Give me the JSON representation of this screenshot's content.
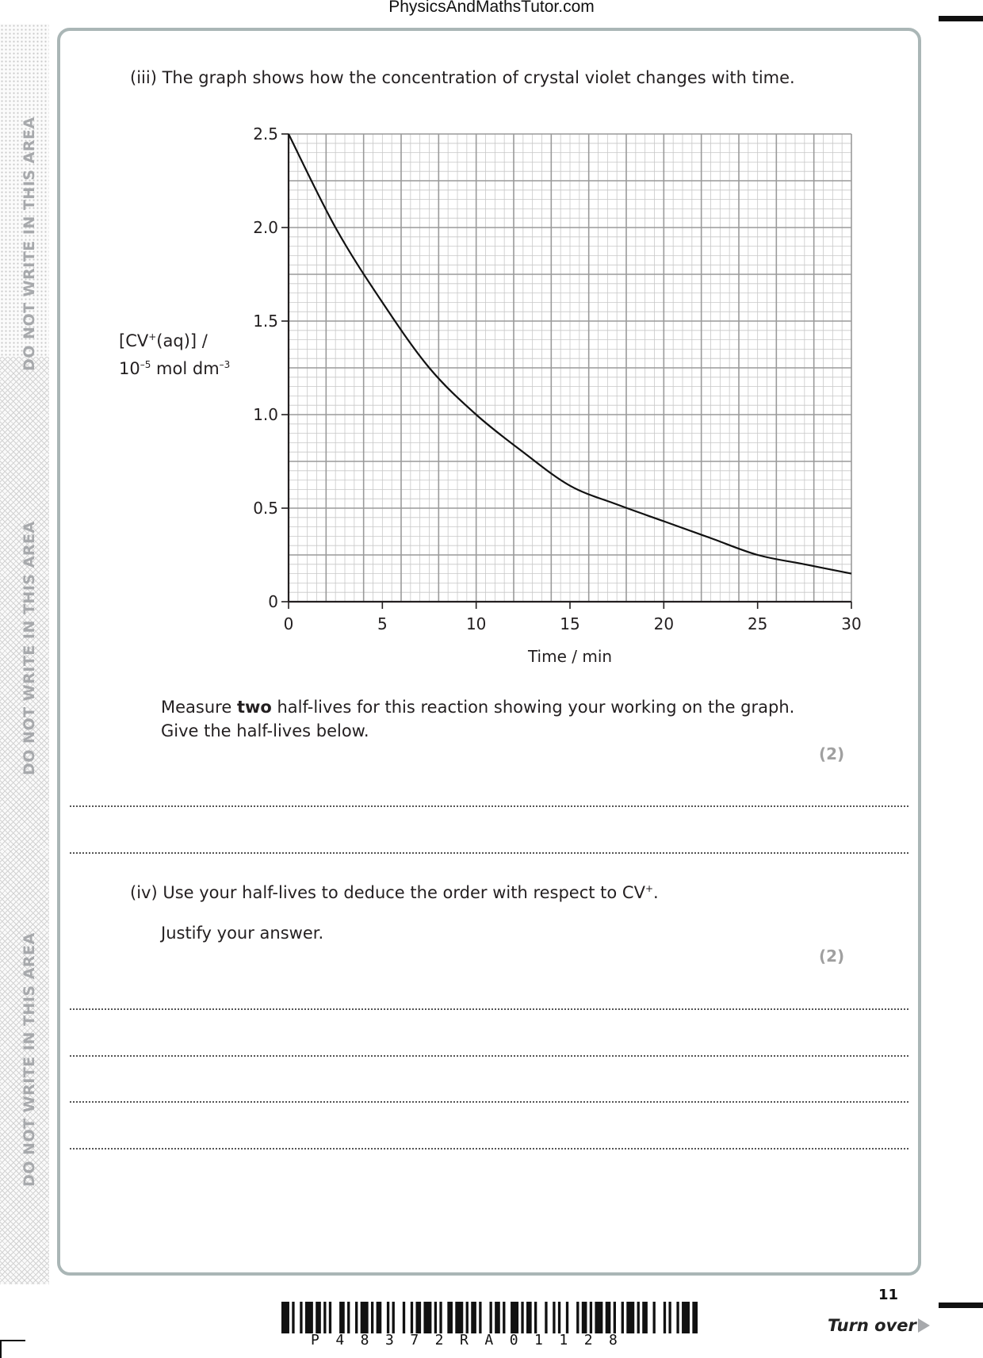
{
  "header": {
    "site": "PhysicsAndMathsTutor.com"
  },
  "margin": {
    "warning": "DO NOT WRITE IN THIS AREA"
  },
  "part_iii": {
    "label": "(iii)",
    "text": "The graph shows how the concentration of crystal violet changes with time.",
    "instruction_pre": "Measure ",
    "instruction_bold": "two",
    "instruction_post": " half-lives for this reaction showing your working on the graph.",
    "instruction_line2": "Give the half-lives below.",
    "marks": "(2)"
  },
  "part_iv": {
    "label": "(iv)",
    "text_pre": "Use your half-lives to deduce the order with respect to CV",
    "text_sup": "+",
    "text_post": ".",
    "line2": "Justify your answer.",
    "marks": "(2)"
  },
  "chart_data": {
    "type": "line",
    "title": "",
    "xlabel": "Time / min",
    "ylabel_line1": "[CV",
    "ylabel_sup1": "+",
    "ylabel_mid": "(aq)] /",
    "ylabel_line2_pre": "10",
    "ylabel_sup2": "–5",
    "ylabel_line2_post": " mol dm",
    "ylabel_sup3": "–3",
    "xlim": [
      0,
      30
    ],
    "ylim": [
      0,
      2.5
    ],
    "x_ticks": [
      "0",
      "5",
      "10",
      "15",
      "20",
      "25",
      "30"
    ],
    "y_ticks": [
      "0",
      "0.5",
      "1.0",
      "1.5",
      "2.0",
      "2.5"
    ],
    "grid": true,
    "series": [
      {
        "x": [
          0,
          2.5,
          5,
          7.5,
          10,
          12.5,
          15,
          17.5,
          20,
          22.5,
          25,
          27.5,
          30
        ],
        "y": [
          2.5,
          2.0,
          1.6,
          1.25,
          1.0,
          0.8,
          0.62,
          0.52,
          0.43,
          0.34,
          0.25,
          0.2,
          0.15
        ]
      }
    ],
    "line_color": "#111111",
    "grid_major_color": "#9a9a9a",
    "grid_minor_color": "#c8c8c8"
  },
  "footer": {
    "barcode_text": "P48372RA01128",
    "page_number": "11",
    "turn_over": "Turn over"
  }
}
